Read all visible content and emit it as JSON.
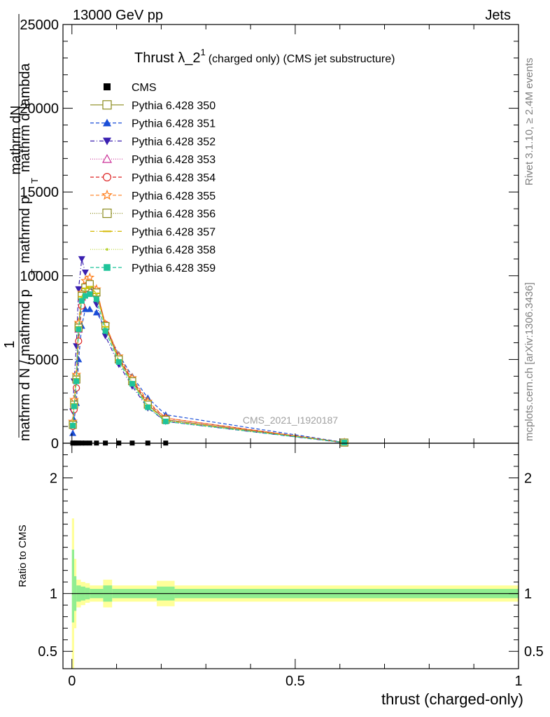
{
  "header": {
    "energy": "13000 GeV pp",
    "category": "Jets"
  },
  "side_labels": {
    "rivet": "Rivet 3.1.10, ≥ 2.4M events",
    "mcplots": "mcplots.cern.ch [arXiv:1306.3436]"
  },
  "watermark": "CMS_2021_I1920187",
  "chart_data": [
    {
      "type": "line",
      "panel": "main",
      "title": "Thrust λ_2",
      "title_sup": "1",
      "title_suffix": "(charged only) (CMS jet substructure)",
      "ylabel_parts": [
        "1",
        "mathrm dN",
        "mathrm d N / mathrmd p",
        "T",
        "mathrmd p",
        "T",
        "mathrm d lambda"
      ],
      "xlim": [
        -0.02,
        1.0
      ],
      "ylim": [
        0,
        25000
      ],
      "yticks": [
        0,
        5000,
        10000,
        15000,
        20000,
        25000
      ],
      "ytick_labels": [
        "0",
        "5000",
        "10000",
        "15000",
        "20000",
        "25000"
      ],
      "x": [
        0.002,
        0.005,
        0.01,
        0.015,
        0.022,
        0.03,
        0.04,
        0.055,
        0.075,
        0.105,
        0.135,
        0.17,
        0.21,
        0.61
      ],
      "cms": {
        "name": "CMS",
        "color": "#000000",
        "x": [
          0.002,
          0.005,
          0.01,
          0.015,
          0.022,
          0.03,
          0.04,
          0.055,
          0.075,
          0.105,
          0.135,
          0.17,
          0.21
        ],
        "y": [
          10,
          10,
          10,
          10,
          10,
          10,
          10,
          10,
          10,
          10,
          10,
          10,
          10
        ]
      },
      "series": [
        {
          "name": "Pythia 6.428 350",
          "color": "#8b8b1e",
          "marker": "square-open",
          "dash": "",
          "values": [
            1100,
            2400,
            3900,
            7000,
            8800,
            9300,
            9400,
            9000,
            7000,
            5000,
            3700,
            2300,
            1400,
            40
          ]
        },
        {
          "name": "Pythia 6.428 351",
          "color": "#1a4ed8",
          "marker": "triangle-up",
          "dash": "5,3",
          "values": [
            600,
            1400,
            2400,
            5000,
            7000,
            8000,
            8000,
            7800,
            6900,
            5300,
            4000,
            2700,
            1700,
            50
          ]
        },
        {
          "name": "Pythia 6.428 352",
          "color": "#3a1fb0",
          "marker": "triangle-down",
          "dash": "6,3,1,3",
          "values": [
            1900,
            3700,
            5800,
            9200,
            11000,
            10200,
            9500,
            8300,
            6400,
            4700,
            3400,
            2100,
            1300,
            30
          ]
        },
        {
          "name": "Pythia 6.428 353",
          "color": "#cc3399",
          "marker": "triangle-open",
          "dash": "1,2",
          "values": [
            1200,
            2400,
            3800,
            6800,
            8700,
            9400,
            9500,
            9000,
            7000,
            5000,
            3700,
            2300,
            1400,
            40
          ]
        },
        {
          "name": "Pythia 6.428 354",
          "color": "#dd2222",
          "marker": "circle-open",
          "dash": "5,3",
          "values": [
            1000,
            2000,
            3300,
            6100,
            8200,
            9200,
            9500,
            9100,
            7100,
            5100,
            3800,
            2400,
            1500,
            40
          ]
        },
        {
          "name": "Pythia 6.428 355",
          "color": "#ff7f1e",
          "marker": "star-open",
          "dash": "5,3",
          "values": [
            1300,
            2600,
            4100,
            7200,
            9000,
            9700,
            9900,
            9200,
            7100,
            5200,
            3900,
            2500,
            1500,
            40
          ]
        },
        {
          "name": "Pythia 6.428 356",
          "color": "#8b8b1e",
          "marker": "square-open",
          "dash": "1,2",
          "values": [
            1100,
            2300,
            3800,
            6900,
            8800,
            9300,
            9500,
            9000,
            7000,
            5000,
            3700,
            2300,
            1400,
            40
          ]
        },
        {
          "name": "Pythia 6.428 357",
          "color": "#d4b800",
          "marker": "dash",
          "dash": "6,3,1,3",
          "values": [
            1150,
            2350,
            3850,
            6950,
            8750,
            9250,
            9350,
            8950,
            6950,
            4950,
            3650,
            2250,
            1350,
            40
          ]
        },
        {
          "name": "Pythia 6.428 358",
          "color": "#b5d22a",
          "marker": "dot",
          "dash": "1,2",
          "values": [
            1100,
            2300,
            3800,
            6900,
            8700,
            9200,
            9300,
            8900,
            6900,
            4950,
            3650,
            2250,
            1350,
            40
          ]
        },
        {
          "name": "Pythia 6.428 359",
          "color": "#1fc49a",
          "marker": "square",
          "dash": "5,3",
          "values": [
            1050,
            2200,
            3700,
            6800,
            8500,
            8800,
            8900,
            8600,
            6700,
            4850,
            3550,
            2150,
            1300,
            40
          ]
        }
      ]
    },
    {
      "type": "area",
      "panel": "ratio",
      "ylabel": "Ratio to CMS",
      "xlabel": "thrust (charged-only)",
      "xlim": [
        -0.02,
        1.0
      ],
      "ylim": [
        0.35,
        2.3
      ],
      "yticks": [
        0.5,
        1,
        2
      ],
      "ytick_labels": [
        "0.5",
        "1",
        "2"
      ],
      "xticks": [
        0,
        0.5,
        1
      ],
      "xtick_labels": [
        "0",
        "0.5",
        "1"
      ],
      "band_x": [
        0,
        0.005,
        0.01,
        0.02,
        0.03,
        0.04,
        0.07,
        0.09,
        0.19,
        0.23,
        1.0
      ],
      "band_outer": {
        "color": "#ffff99",
        "lo": [
          0.35,
          0.7,
          0.88,
          0.9,
          0.92,
          0.93,
          0.88,
          0.93,
          0.89,
          0.93
        ],
        "hi": [
          1.65,
          1.3,
          1.12,
          1.1,
          1.09,
          1.07,
          1.12,
          1.07,
          1.11,
          1.07
        ]
      },
      "band_inner": {
        "color": "#90ee90",
        "lo": [
          0.75,
          0.85,
          0.93,
          0.94,
          0.95,
          0.96,
          0.93,
          0.96,
          0.94,
          0.96
        ],
        "hi": [
          1.38,
          1.15,
          1.07,
          1.06,
          1.05,
          1.04,
          1.07,
          1.04,
          1.06,
          1.04
        ]
      },
      "reference": 1
    }
  ]
}
